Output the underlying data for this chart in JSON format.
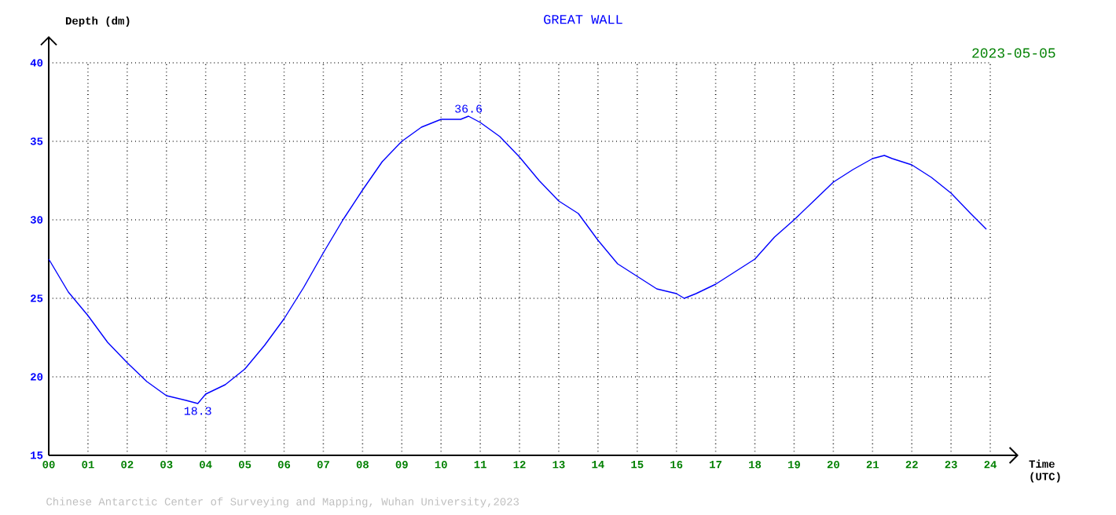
{
  "chart_data": {
    "type": "line",
    "title": "GREAT WALL",
    "xlabel": "Time (UTC)",
    "ylabel": "Depth (dm)",
    "x": [
      0,
      0.5,
      1,
      1.5,
      2,
      2.5,
      3,
      3.5,
      3.8,
      4,
      4.5,
      5,
      5.5,
      6,
      6.5,
      7,
      7.5,
      8,
      8.5,
      9,
      9.5,
      10,
      10.5,
      10.7,
      11,
      11.5,
      12,
      12.5,
      13,
      13.5,
      14,
      14.5,
      15,
      15.5,
      16,
      16.2,
      16.5,
      17,
      17.5,
      18,
      18.5,
      19,
      19.5,
      20,
      20.5,
      21,
      21.3,
      21.5,
      22,
      22.5,
      23,
      23.5,
      23.9
    ],
    "series": [
      {
        "color": "#0000ff",
        "values": [
          27.5,
          25.4,
          23.9,
          22.2,
          20.9,
          19.7,
          18.8,
          18.5,
          18.3,
          18.9,
          19.5,
          20.5,
          22.0,
          23.7,
          25.7,
          27.9,
          30.0,
          31.9,
          33.7,
          35.0,
          35.9,
          36.4,
          36.4,
          36.6,
          36.2,
          35.3,
          34.0,
          32.5,
          31.2,
          30.4,
          28.7,
          27.2,
          26.4,
          25.6,
          25.3,
          25.0,
          25.3,
          25.9,
          26.7,
          27.5,
          28.9,
          30.0,
          31.2,
          32.4,
          33.2,
          33.9,
          34.1,
          33.9,
          33.5,
          32.7,
          31.7,
          30.4,
          29.4
        ]
      }
    ],
    "xlim": [
      0,
      24
    ],
    "ylim": [
      15,
      40
    ],
    "xticks": [
      {
        "value": 0,
        "label": "00"
      },
      {
        "value": 1,
        "label": "01"
      },
      {
        "value": 2,
        "label": "02"
      },
      {
        "value": 3,
        "label": "03"
      },
      {
        "value": 4,
        "label": "04"
      },
      {
        "value": 5,
        "label": "05"
      },
      {
        "value": 6,
        "label": "06"
      },
      {
        "value": 7,
        "label": "07"
      },
      {
        "value": 8,
        "label": "08"
      },
      {
        "value": 9,
        "label": "09"
      },
      10,
      11,
      12,
      13,
      14,
      15,
      16,
      17,
      18,
      19,
      20,
      21,
      22,
      23,
      24
    ],
    "yticks": [
      15,
      20,
      25,
      30,
      35,
      40
    ],
    "grid": true,
    "annotations": [
      {
        "text": "36.6",
        "x": 10.7,
        "y": 36.6
      },
      {
        "text": "18.3",
        "x": 3.8,
        "y": 18.3
      },
      "2023-05-05",
      "Chinese Antarctic Center of Surveying and Mapping, Wuhan University,2023"
    ]
  }
}
